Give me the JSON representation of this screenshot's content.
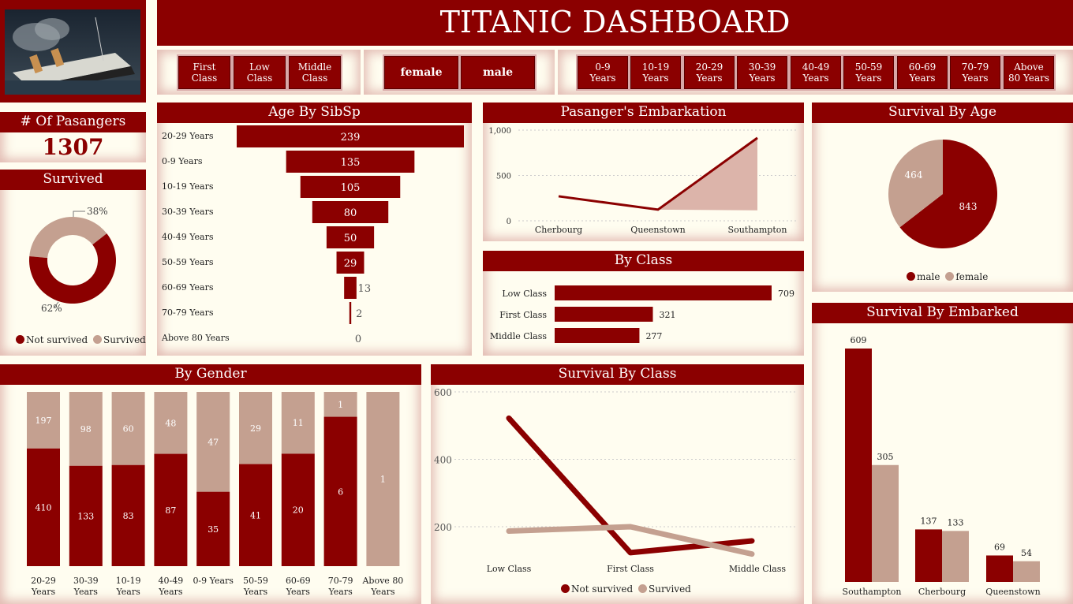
{
  "title": "TITANIC DASHBOARD",
  "colors": {
    "maroon": "#8b0000",
    "tan": "#c4a090",
    "background": "#fffdf0"
  },
  "slicers": {
    "class": [
      "First\nClass",
      "Low\nClass",
      "Middle\nClass"
    ],
    "gender": [
      "female",
      "male"
    ],
    "age": [
      "0-9\nYears",
      "10-19\nYears",
      "20-29\nYears",
      "30-39\nYears",
      "40-49\nYears",
      "50-59\nYears",
      "60-69\nYears",
      "70-79\nYears",
      "Above\n80 Years"
    ]
  },
  "kpi": {
    "label": "# Of Pasangers",
    "value": "1307"
  },
  "chart_data": [
    {
      "id": "survived",
      "type": "pie",
      "title": "Survived",
      "categories": [
        "Not survived",
        "Survived"
      ],
      "values": [
        62,
        38
      ],
      "labels": [
        "62%",
        "38%"
      ]
    },
    {
      "id": "age_by_sibsp",
      "type": "bar",
      "title": "Age By SibSp",
      "categories": [
        "20-29 Years",
        "0-9 Years",
        "10-19 Years",
        "30-39 Years",
        "40-49 Years",
        "50-59 Years",
        "60-69 Years",
        "70-79 Years",
        "Above 80 Years"
      ],
      "values": [
        239,
        135,
        105,
        80,
        50,
        29,
        13,
        2,
        0
      ]
    },
    {
      "id": "embarkation",
      "type": "area",
      "title": "Pasanger's Embarkation",
      "categories": [
        "Cherbourg",
        "Queenstown",
        "Southampton"
      ],
      "series": [
        {
          "values": [
            270,
            123,
            914
          ]
        },
        {
          "values": [
            270,
            123,
            115
          ]
        }
      ],
      "yticks": [
        "0",
        "500",
        "1,000"
      ],
      "ylim": [
        0,
        1000
      ]
    },
    {
      "id": "by_class",
      "type": "bar",
      "title": "By Class",
      "categories": [
        "Low Class",
        "First Class",
        "Middle Class"
      ],
      "values": [
        709,
        321,
        277
      ]
    },
    {
      "id": "survival_by_age",
      "type": "pie",
      "title": "Survival By Age",
      "categories": [
        "male",
        "female"
      ],
      "values": [
        843,
        464
      ]
    },
    {
      "id": "survival_by_embarked",
      "type": "bar",
      "title": "Survival By Embarked",
      "categories": [
        "Southampton",
        "Cherbourg",
        "Queenstown"
      ],
      "series": [
        {
          "values": [
            609,
            137,
            69
          ]
        },
        {
          "values": [
            305,
            133,
            54
          ]
        }
      ]
    },
    {
      "id": "by_gender",
      "type": "bar",
      "title": "By Gender",
      "categories": [
        "20-29\nYears",
        "30-39\nYears",
        "10-19\nYears",
        "40-49\nYears",
        "0-9 Years",
        "50-59\nYears",
        "60-69\nYears",
        "70-79\nYears",
        "Above 80\nYears"
      ],
      "series": [
        {
          "values": [
            410,
            133,
            83,
            87,
            35,
            41,
            20,
            6,
            0
          ]
        },
        {
          "values": [
            197,
            98,
            60,
            48,
            47,
            29,
            11,
            1,
            1
          ]
        }
      ]
    },
    {
      "id": "survival_by_class",
      "type": "line",
      "title": "Survival By Class",
      "categories": [
        "Low Class",
        "First Class",
        "Middle Class"
      ],
      "series": [
        {
          "name": "Not survived",
          "values": [
            522,
            123,
            158
          ]
        },
        {
          "name": "Survived",
          "values": [
            187,
            200,
            119
          ]
        }
      ],
      "yticks": [
        "200",
        "400",
        "600"
      ],
      "ylim": [
        100,
        600
      ]
    }
  ]
}
